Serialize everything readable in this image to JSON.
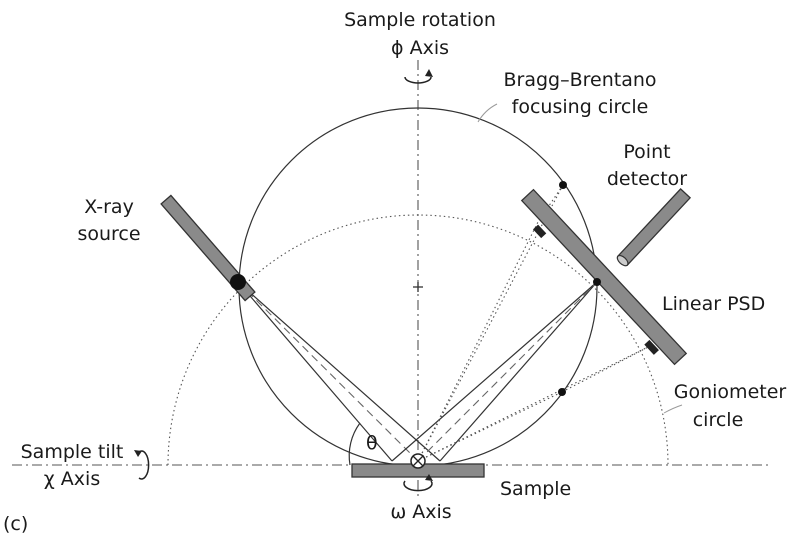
{
  "labels": {
    "sample_rotation": "Sample rotation",
    "phi_axis": "ϕ Axis",
    "focusing_circle_line1": "Bragg–Brentano",
    "focusing_circle_line2": "focusing circle",
    "point_detector_line1": "Point",
    "point_detector_line2": "detector",
    "xray_source_line1": "X-ray",
    "xray_source_line2": "source",
    "linear_psd": "Linear PSD",
    "goniometer_line1": "Goniometer",
    "goniometer_line2": "circle",
    "sample_tilt": "Sample tilt",
    "chi_axis": "χ Axis",
    "theta": "θ",
    "sample": "Sample",
    "omega_axis": "ω Axis",
    "panel": "(c)"
  }
}
